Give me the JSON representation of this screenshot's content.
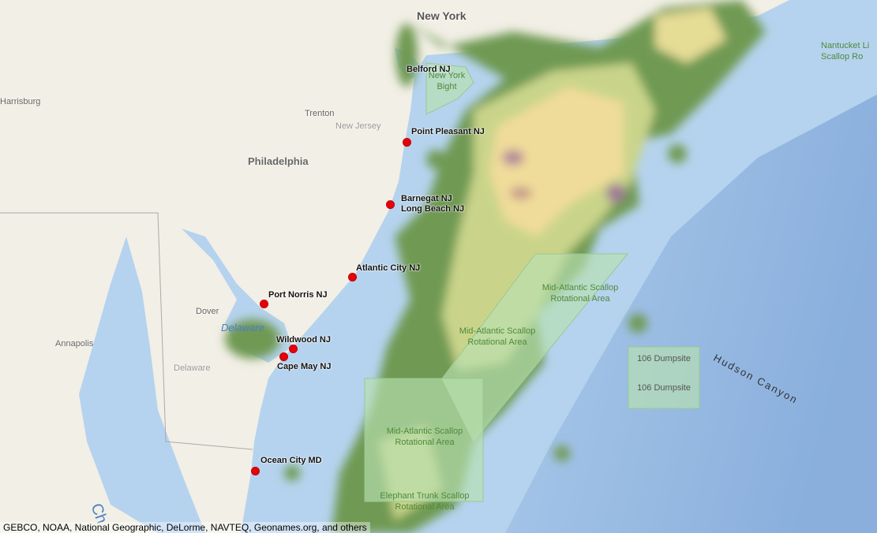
{
  "map": {
    "colors": {
      "ocean": "#b5d3ee",
      "land": "#f2efe6",
      "heat_low": "#6f9a52",
      "heat_mid": "#c9d48a",
      "heat_high": "#f0dc9a",
      "heat_peak": "#b48a9a",
      "zone_fill": "#b9e0b0"
    },
    "places": [
      {
        "name": "New York",
        "type": "major"
      },
      {
        "name": "Harrisburg",
        "type": "place"
      },
      {
        "name": "Trenton",
        "type": "place"
      },
      {
        "name": "New Jersey",
        "type": "region"
      },
      {
        "name": "Philadelphia",
        "type": "major"
      },
      {
        "name": "Dover",
        "type": "place"
      },
      {
        "name": "Annapolis",
        "type": "place"
      },
      {
        "name": "Delaware",
        "type": "region"
      },
      {
        "name": "Delaware",
        "type": "water"
      },
      {
        "name": "Ch",
        "type": "water"
      },
      {
        "name": "Hudson Canyon",
        "type": "feature"
      }
    ],
    "ports": [
      "Belford NJ",
      "Point Pleasant NJ",
      "Barnegat NJ",
      "Long Beach NJ",
      "Atlantic City NJ",
      "Port Norris NJ",
      "Wildwood NJ",
      "Cape May NJ",
      "Ocean City MD"
    ],
    "zones": [
      {
        "label": "New York Bight"
      },
      {
        "label": "Nantucket Lightship Scallop Rotational Area",
        "visible": "Nantucket Li\nScallop Ro"
      },
      {
        "label": "Mid-Atlantic Scallop Rotational Area"
      },
      {
        "label": "Mid-Atlantic Scallop Rotational Area"
      },
      {
        "label": "Mid-Atlantic Scallop Rotational Area"
      },
      {
        "label": "Elephant Trunk Scallop Rotational Area"
      },
      {
        "label": "106 Dumpsite"
      },
      {
        "label": "106 Dumpsite"
      }
    ],
    "attribution": "GEBCO, NOAA, National Geographic, DeLorme, NAVTEQ, Geonames.org, and others"
  }
}
